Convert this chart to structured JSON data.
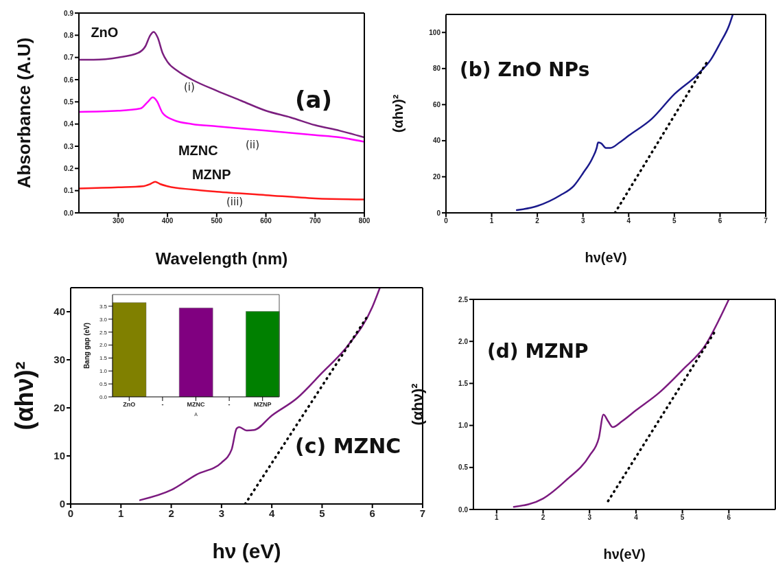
{
  "chart_data": [
    {
      "type": "line",
      "title": "(a)",
      "xlabel": "Wavelength (nm)",
      "ylabel": "Absorbance (A.U)",
      "xlim": [
        220,
        800
      ],
      "xticks": [
        300,
        400,
        500,
        600,
        700,
        800
      ],
      "ylim": [
        0,
        0.9
      ],
      "yticks": [
        {
          "value": 0,
          "label": "0.0"
        },
        0.1,
        0.2,
        0.3,
        0.4,
        0.5,
        0.6,
        0.7,
        0.8,
        0.9
      ],
      "series": [
        {
          "name": "ZnO",
          "color": "#7b1f7f",
          "x": [
            220,
            250,
            300,
            340,
            355,
            365,
            372,
            380,
            390,
            400,
            420,
            450,
            500,
            550,
            600,
            650,
            700,
            750,
            800
          ],
          "values": [
            0.69,
            0.69,
            0.7,
            0.72,
            0.75,
            0.8,
            0.815,
            0.79,
            0.72,
            0.68,
            0.64,
            0.6,
            0.55,
            0.505,
            0.46,
            0.43,
            0.395,
            0.37,
            0.34
          ]
        },
        {
          "name": "MZNC",
          "color": "#ff00ff",
          "x": [
            220,
            300,
            345,
            360,
            370,
            378,
            390,
            410,
            450,
            500,
            550,
            600,
            650,
            700,
            750,
            800
          ],
          "values": [
            0.455,
            0.46,
            0.47,
            0.5,
            0.52,
            0.505,
            0.45,
            0.42,
            0.4,
            0.39,
            0.38,
            0.37,
            0.36,
            0.35,
            0.34,
            0.32
          ]
        },
        {
          "name": "MZNP",
          "color": "#ff1a1a",
          "x": [
            220,
            300,
            350,
            365,
            375,
            385,
            400,
            450,
            500,
            600,
            700,
            800
          ],
          "values": [
            0.11,
            0.115,
            0.12,
            0.13,
            0.14,
            0.13,
            0.12,
            0.105,
            0.095,
            0.08,
            0.065,
            0.06
          ]
        }
      ],
      "annotations": [
        "(i)",
        "(ii)",
        "(iii)"
      ]
    },
    {
      "type": "line",
      "title": "(b) ZnO NPs",
      "xlabel": "hν(eV)",
      "ylabel": "(αhν)²",
      "xlim": [
        0,
        7
      ],
      "xticks": [
        0,
        1,
        2,
        3,
        4,
        5,
        6,
        7
      ],
      "ylim": [
        0,
        110
      ],
      "yticks": [
        0,
        20,
        40,
        60,
        80,
        100
      ],
      "series": [
        {
          "color": "#1a1a8c",
          "x": [
            1.55,
            2,
            2.5,
            2.8,
            3,
            3.2,
            3.3,
            3.33,
            3.4,
            3.5,
            3.6,
            3.8,
            4,
            4.5,
            5,
            5.5,
            5.8,
            6,
            6.2,
            6.28
          ],
          "values": [
            1.5,
            3.8,
            9.7,
            15,
            22,
            30,
            36,
            39,
            38.5,
            36,
            36,
            39,
            42.8,
            52,
            65.8,
            76.5,
            85,
            94,
            104,
            110
          ]
        },
        {
          "color": "#000000",
          "line_style": "dotted",
          "x": [
            3.7,
            5.7
          ],
          "values": [
            0,
            83
          ]
        }
      ]
    },
    {
      "type": "line",
      "title": "(c) MZNC",
      "xlabel": "hν (eV)",
      "ylabel": "(αhν)²",
      "xlim": [
        0,
        7
      ],
      "xticks": [
        0,
        1,
        2,
        3,
        4,
        5,
        6,
        7
      ],
      "ylim": [
        0,
        45
      ],
      "yticks": [
        0,
        10,
        20,
        30,
        40
      ],
      "series": [
        {
          "color": "#7b1a7f",
          "x": [
            1.38,
            2,
            2.5,
            3,
            3.2,
            3.3,
            3.35,
            3.5,
            3.65,
            4,
            4.5,
            5,
            5.5,
            6,
            6.15
          ],
          "values": [
            0.8,
            2.9,
            6.1,
            8.6,
            11.3,
            15.7,
            16,
            15.3,
            15.4,
            18.4,
            22,
            27.3,
            32.8,
            41,
            45
          ]
        },
        {
          "color": "#000000",
          "line_style": "dotted",
          "x": [
            3.47,
            5.88
          ],
          "values": [
            0,
            38.7
          ]
        }
      ]
    },
    {
      "type": "bar",
      "xlabel": "A",
      "ylabel": "Bang gap (eV)",
      "categories": [
        "ZnO",
        "-",
        "MZNC",
        "-",
        "MZNP"
      ],
      "values": [
        3.64,
        null,
        3.43,
        null,
        3.3
      ],
      "colors": [
        "#808000",
        "#808000",
        "#800080",
        "#800080",
        "#008000"
      ],
      "ylim": [
        0,
        3.95
      ],
      "yticks": [
        {
          "value": 0,
          "label": "0.0"
        },
        0.5,
        {
          "value": 1,
          "label": "1.0"
        },
        1.5,
        {
          "value": 2,
          "label": "2.0"
        },
        2.5,
        {
          "value": 3,
          "label": "3.0"
        },
        3.5
      ]
    },
    {
      "type": "line",
      "title": "(d) MZNP",
      "xlabel": "hν(eV)",
      "ylabel": "(αhν)²",
      "xlim": [
        0.5,
        7
      ],
      "xticks": [
        1,
        2,
        3,
        4,
        5,
        6
      ],
      "ylim": [
        0,
        2.5
      ],
      "yticks": [
        {
          "value": 0,
          "label": "0.0"
        },
        0.5,
        {
          "value": 1,
          "label": "1.0"
        },
        1.5,
        {
          "value": 2,
          "label": "2.0"
        },
        2.5
      ],
      "series": [
        {
          "color": "#7b1a7f",
          "x": [
            1.37,
            2,
            2.5,
            3,
            3.2,
            3.3,
            3.4,
            3.5,
            3.7,
            4,
            4.5,
            5,
            5.5,
            5.8,
            6
          ],
          "values": [
            0.03,
            0.13,
            0.35,
            0.64,
            0.85,
            1.13,
            1.05,
            0.98,
            1.05,
            1.18,
            1.39,
            1.66,
            1.96,
            2.27,
            2.5
          ]
        },
        {
          "color": "#000000",
          "line_style": "dotted",
          "x": [
            3.4,
            5.68
          ],
          "values": [
            0.1,
            2.1
          ]
        }
      ]
    }
  ]
}
